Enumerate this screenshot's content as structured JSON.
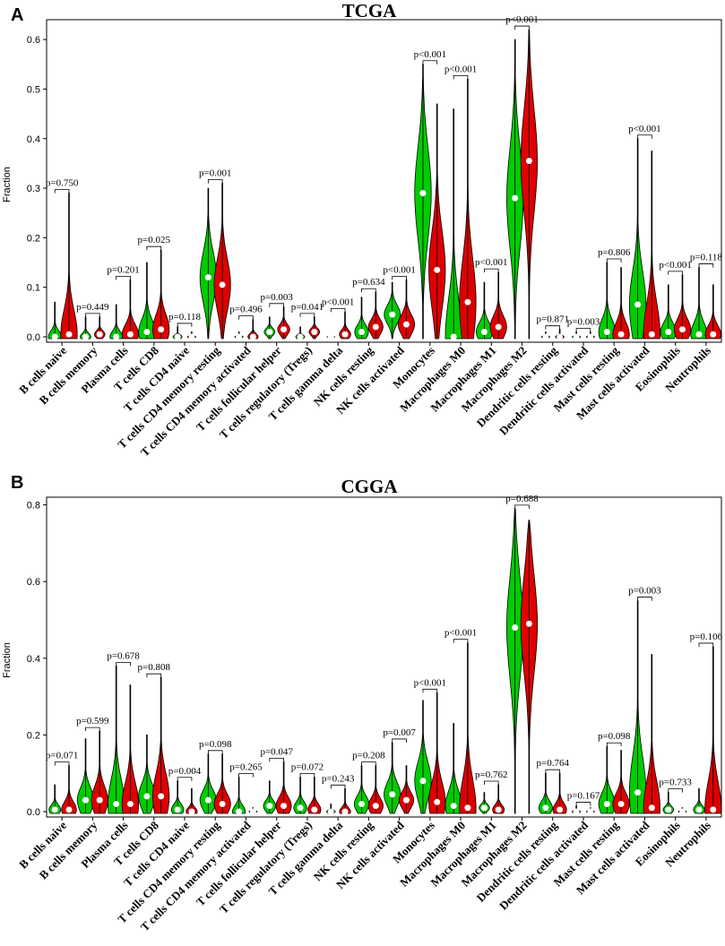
{
  "colors": {
    "group1": "#00cc00",
    "group2": "#dd0000",
    "axis": "#000000",
    "median": "#ffffff"
  },
  "panels": [
    {
      "letter": "A",
      "title": "TCGA",
      "ylabel": "Fraction"
    },
    {
      "letter": "B",
      "title": "CGGA",
      "ylabel": "Fraction"
    }
  ],
  "chart_data": [
    {
      "type": "violin",
      "title": "TCGA",
      "ylabel": "Fraction",
      "ylim": [
        0,
        0.64
      ],
      "yticks": [
        "0.0",
        "0.1",
        "0.2",
        "0.3",
        "0.4",
        "0.5",
        "0.6"
      ],
      "categories": [
        "B cells naive",
        "B cells memory",
        "Plasma cells",
        "T cells CD8",
        "T cells CD4 naive",
        "T cells CD4 memory resting",
        "T cells CD4 memory activated",
        "T cells follicular helper",
        "T cells regulatory (Tregs)",
        "T cells gamma delta",
        "NK cells resting",
        "NK cells activated",
        "Monocytes",
        "Macrophages M0",
        "Macrophages M1",
        "Macrophages M2",
        "Dendritic cells resting",
        "Dendritic cells activated",
        "Mast cells resting",
        "Mast cells activated",
        "Eosinophils",
        "Neutrophils"
      ],
      "pvalues": [
        "p=0.750",
        "p=0.449",
        "p=0.201",
        "p=0.025",
        "p=0.118",
        "p=0.001",
        "p=0.496",
        "p=0.003",
        "p=0.041",
        "p<0.001",
        "p=0.634",
        "p<0.001",
        "p<0.001",
        "p<0.001",
        "p<0.001",
        "p<0.001",
        "p=0.871",
        "p=0.003",
        "p=0.806",
        "p<0.001",
        "p<0.001",
        "p=0.118"
      ],
      "series": [
        {
          "name": "group1",
          "medians": [
            0.0,
            0.0,
            0.0,
            0.01,
            0.0,
            0.12,
            0.0,
            0.01,
            0.0,
            0.0,
            0.01,
            0.045,
            0.29,
            0.0,
            0.01,
            0.28,
            0.0,
            0.0,
            0.01,
            0.065,
            0.01,
            0.005
          ],
          "maxes": [
            0.07,
            0.04,
            0.065,
            0.15,
            0.02,
            0.3,
            0.01,
            0.04,
            0.02,
            0.002,
            0.08,
            0.11,
            0.55,
            0.46,
            0.11,
            0.6,
            0.01,
            0.01,
            0.15,
            0.4,
            0.105,
            0.14
          ]
        },
        {
          "name": "group2",
          "medians": [
            0.005,
            0.005,
            0.005,
            0.015,
            0.0,
            0.105,
            0.0,
            0.015,
            0.01,
            0.005,
            0.02,
            0.025,
            0.135,
            0.07,
            0.02,
            0.355,
            0.0,
            0.0,
            0.005,
            0.005,
            0.015,
            0.005
          ],
          "maxes": [
            0.29,
            0.04,
            0.115,
            0.175,
            0.01,
            0.31,
            0.035,
            0.06,
            0.04,
            0.05,
            0.09,
            0.115,
            0.47,
            0.52,
            0.13,
            0.62,
            0.015,
            0.01,
            0.14,
            0.375,
            0.125,
            0.105
          ]
        }
      ]
    },
    {
      "type": "violin",
      "title": "CGGA",
      "ylabel": "Fraction",
      "ylim": [
        0,
        0.82
      ],
      "yticks": [
        "0.0",
        "0.2",
        "0.4",
        "0.6",
        "0.8"
      ],
      "categories": [
        "B cells naive",
        "B cells memory",
        "Plasma cells",
        "T cells CD8",
        "T cells CD4 naive",
        "T cells CD4 memory resting",
        "T cells CD4 memory activated",
        "T cells follicular helper",
        "T cells regulatory (Tregs)",
        "T cells gamma delta",
        "NK cells resting",
        "NK cells activated",
        "Monocytes",
        "Macrophages M0",
        "Macrophages M1",
        "Macrophages M2",
        "Dendritic cells resting",
        "Dendritic cells activated",
        "Mast cells resting",
        "Mast cells activated",
        "Eosinophils",
        "Neutrophils"
      ],
      "pvalues": [
        "p=0.071",
        "p=0.599",
        "p=0.678",
        "p=0.808",
        "p=0.004",
        "p=0.098",
        "p=0.265",
        "p=0.047",
        "p=0.072",
        "p=0.243",
        "p=0.208",
        "p=0.007",
        "p<0.001",
        "p<0.001",
        "p=0.762",
        "p=0.688",
        "p=0.764",
        "p=0.167",
        "p=0.098",
        "p=0.003",
        "p=0.733",
        "p=0.106"
      ],
      "series": [
        {
          "name": "group1",
          "medians": [
            0.005,
            0.03,
            0.02,
            0.04,
            0.005,
            0.03,
            0.0,
            0.015,
            0.01,
            0.0,
            0.02,
            0.045,
            0.08,
            0.015,
            0.01,
            0.48,
            0.01,
            0.0,
            0.02,
            0.05,
            0.005,
            0.005
          ],
          "maxes": [
            0.07,
            0.19,
            0.38,
            0.2,
            0.08,
            0.15,
            0.09,
            0.08,
            0.09,
            0.02,
            0.12,
            0.18,
            0.29,
            0.23,
            0.05,
            0.79,
            0.1,
            0.015,
            0.17,
            0.55,
            0.05,
            0.06
          ]
        },
        {
          "name": "group2",
          "medians": [
            0.005,
            0.03,
            0.02,
            0.04,
            0.0,
            0.02,
            0.0,
            0.015,
            0.005,
            0.0,
            0.015,
            0.03,
            0.025,
            0.01,
            0.005,
            0.49,
            0.005,
            0.0,
            0.02,
            0.01,
            0.0,
            0.005
          ],
          "maxes": [
            0.12,
            0.21,
            0.33,
            0.35,
            0.06,
            0.15,
            0.01,
            0.13,
            0.09,
            0.06,
            0.12,
            0.12,
            0.31,
            0.44,
            0.07,
            0.76,
            0.1,
            0.01,
            0.16,
            0.41,
            0.01,
            0.43
          ]
        }
      ]
    }
  ]
}
